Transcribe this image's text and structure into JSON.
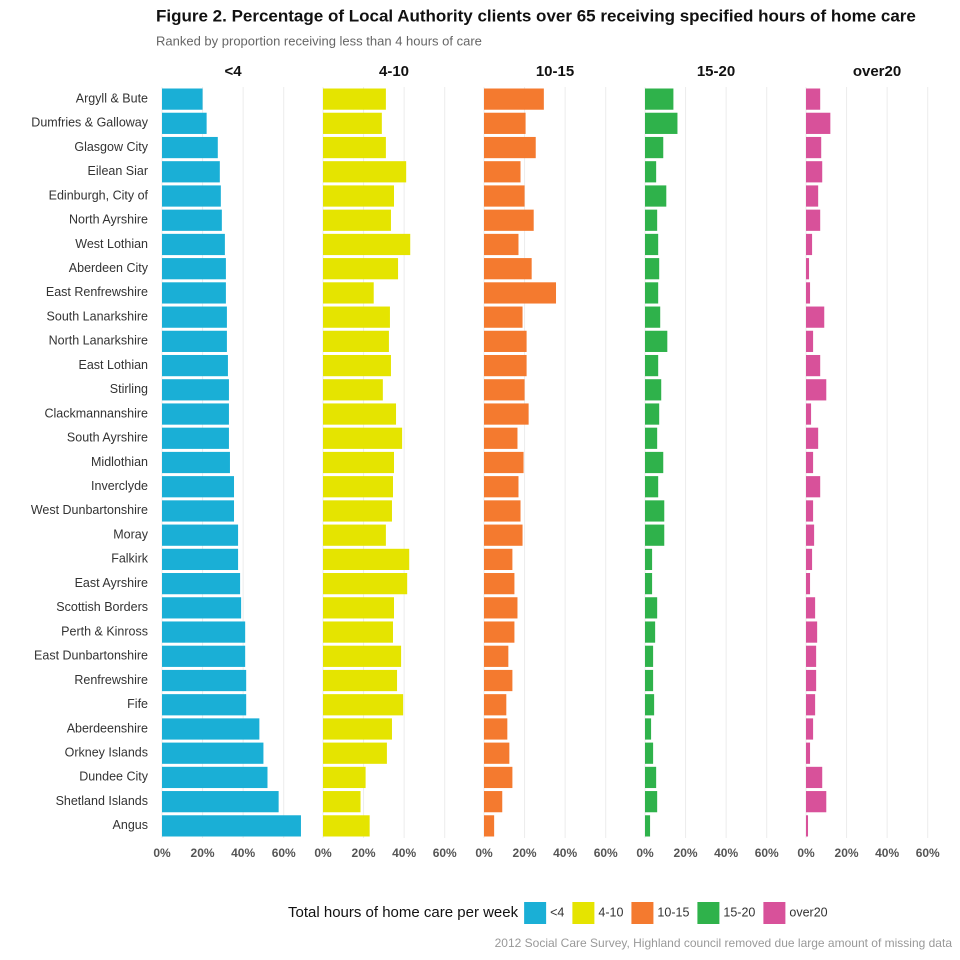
{
  "chart_data": {
    "type": "bar",
    "orientation": "horizontal",
    "title": "Figure 2. Percentage of Local Authority clients over 65 receiving specified hours of home care",
    "subtitle": "Ranked by proportion receiving less than 4 hours of care",
    "legend_title": "Total hours of home care per week",
    "caption": "2012 Social Care Survey, Highland council removed due large amount of missing data",
    "legend": "bottom",
    "grid": true,
    "xlim": [
      0,
      70
    ],
    "xticks": [
      {
        "value": 0,
        "label": "0%"
      },
      {
        "value": 20,
        "label": "20%"
      },
      {
        "value": 40,
        "label": "40%"
      },
      {
        "value": 60,
        "label": "60%"
      }
    ],
    "categories": [
      "Argyll & Bute",
      "Dumfries & Galloway",
      "Glasgow City",
      "Eilean Siar",
      "Edinburgh, City of",
      "North Ayrshire",
      "West Lothian",
      "Aberdeen City",
      "East Renfrewshire",
      "South Lanarkshire",
      "North Lanarkshire",
      "East Lothian",
      "Stirling",
      "Clackmannanshire",
      "South Ayrshire",
      "Midlothian",
      "Inverclyde",
      "West Dunbartonshire",
      "Moray",
      "Falkirk",
      "East Ayrshire",
      "Scottish Borders",
      "Perth & Kinross",
      "East Dunbartonshire",
      "Renfrewshire",
      "Fife",
      "Aberdeenshire",
      "Orkney Islands",
      "Dundee City",
      "Shetland Islands",
      "Angus"
    ],
    "series": [
      {
        "name": "<4",
        "color": "#1aafd6",
        "values": [
          20,
          22,
          27.5,
          28.5,
          29,
          29.5,
          31,
          31.5,
          31.5,
          32,
          32,
          32.5,
          33,
          33,
          33,
          33.5,
          35.5,
          35.5,
          37.5,
          37.5,
          38.5,
          39,
          41,
          41,
          41.5,
          41.5,
          48,
          50,
          52,
          57.5,
          68.5
        ]
      },
      {
        "name": "4-10",
        "color": "#e5e400",
        "values": [
          31,
          29,
          31,
          41,
          35,
          33.5,
          43,
          37,
          25,
          33,
          32.5,
          33.5,
          29.5,
          36,
          39,
          35,
          34.5,
          34,
          31,
          42.5,
          41.5,
          35,
          34.5,
          38.5,
          36.5,
          39.5,
          34,
          31.5,
          21,
          18.5,
          23
        ]
      },
      {
        "name": "10-15",
        "color": "#f47a2f",
        "values": [
          29.5,
          20.5,
          25.5,
          18,
          20,
          24.5,
          17,
          23.5,
          35.5,
          19,
          21,
          21,
          20,
          22,
          16.5,
          19.5,
          17,
          18,
          19,
          14,
          15,
          16.5,
          15,
          12,
          14,
          11,
          11.5,
          12.5,
          14,
          9,
          5
        ]
      },
      {
        "name": "15-20",
        "color": "#2fb24b",
        "values": [
          14,
          16,
          9,
          5.5,
          10.5,
          6,
          6.5,
          7,
          6.5,
          7.5,
          11,
          6.5,
          8,
          7,
          6,
          9,
          6.5,
          9.5,
          9.5,
          3.5,
          3.5,
          6,
          5,
          4,
          4,
          4.5,
          3,
          4,
          5.5,
          6,
          2.5
        ]
      },
      {
        "name": "over20",
        "color": "#d8519a",
        "values": [
          7,
          12,
          7.5,
          8,
          6,
          7,
          3,
          1.5,
          2,
          9,
          3.5,
          7,
          10,
          2.5,
          6,
          3.5,
          7,
          3.5,
          4,
          3,
          2,
          4.5,
          5.5,
          5,
          5,
          4.5,
          3.5,
          2,
          8,
          10,
          1
        ]
      }
    ]
  }
}
